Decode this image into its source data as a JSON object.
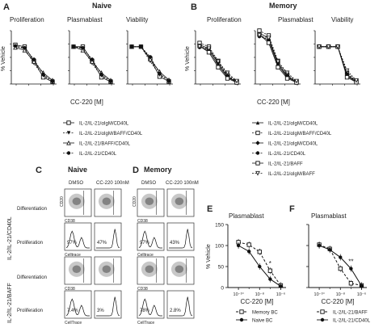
{
  "panels": {
    "A": {
      "letter": "A",
      "group_title": "Naive",
      "col_titles": [
        "Proliferation",
        "Plasmablast",
        "Viability"
      ],
      "ylabel": "% Vehicle",
      "xlabel": "CC-220 [M]",
      "legend": [
        "IL-2/IL-21/αIgM/CD40L",
        "IL-2/IL-21/αIgM/BAFF/CD40L",
        "IL-2/IL-21/BAFF/CD40L",
        "IL-2/IL-21/CD40L"
      ]
    },
    "B": {
      "letter": "B",
      "group_title": "Memory",
      "col_titles": [
        "Proliferation",
        "Plasmablast",
        "Viability"
      ],
      "ylabel": "% Vehicle",
      "xlabel": "CC-220 [M]",
      "legend": [
        "IL-2/IL-21/αIgM/CD40L",
        "IL-2/IL-21/αIgM/BAFF/CD40L",
        "IL-2/IL-21/αIgM/CD40L",
        "IL-2/IL-21/CD40L",
        "IL-2/IL-21/BAFF",
        "IL-2/IL-21/αIgM/BAFF"
      ]
    },
    "C": {
      "letter": "C",
      "title": "Naive",
      "col_labels": [
        "DMSO",
        "CC-220 100nM"
      ],
      "row_group_labels": [
        "IL-2/IL-21/CD40L",
        "IL-2/IL-21/BAFF"
      ],
      "row_labels": [
        "Differentiation",
        "Proliferation",
        "Differentiation",
        "Proliferation"
      ],
      "percents": [
        [
          "97%",
          "47%"
        ],
        [
          "7.4%",
          "3%"
        ]
      ],
      "axis_cd20": "CD20",
      "axis_cd38": "CD38",
      "axis_celltrace": "Celltrace",
      "axis_celltrace2": "CellTrace"
    },
    "D": {
      "letter": "D",
      "title": "Memory",
      "col_labels": [
        "DMSO",
        "CC-220 100nM"
      ],
      "percents": [
        [
          "97%",
          "43%"
        ],
        [
          "78%",
          "2.8%"
        ]
      ],
      "axis_cd20": "CD20",
      "axis_cd38": "CD38",
      "axis_celltrace": "Celltrace",
      "axis_celltrace2": "CellTrace"
    },
    "E": {
      "letter": "E",
      "title": "Plasmablast",
      "ylabel": "% Vehicle",
      "xlabel": "CC-220 [M]",
      "yticks": [
        "0",
        "50",
        "100",
        "150"
      ],
      "xticks": [
        "10⁻¹⁰",
        "10⁻⁸",
        "10⁻⁶"
      ],
      "annotation": "*",
      "legend": [
        "Memory BC",
        "Naive BC"
      ]
    },
    "F": {
      "letter": "F",
      "title": "Plasmablast",
      "xlabel": "CC-220 [M]",
      "xticks": [
        "10⁻¹⁰",
        "10⁻⁸",
        "10⁻⁶"
      ],
      "annotation": "**",
      "legend": [
        "IL-2/IL-21/BAFF",
        "IL-2/IL-21/CD40L"
      ]
    }
  },
  "chart_data": [
    {
      "panel": "E",
      "type": "line",
      "title": "Plasmablast",
      "xlabel": "CC-220 [M]",
      "ylabel": "% Vehicle",
      "xscale": "log",
      "xlim": [
        -11,
        -5.5
      ],
      "ylim": [
        0,
        150
      ],
      "x": [
        "1e-10",
        "1e-9",
        "1e-8",
        "1e-7",
        "1e-6"
      ],
      "series": [
        {
          "name": "Memory BC",
          "marker": "open-square",
          "style": "dashed",
          "values": [
            108,
            102,
            85,
            40,
            5
          ]
        },
        {
          "name": "Naive BC",
          "marker": "filled-circle",
          "style": "solid",
          "values": [
            100,
            86,
            50,
            20,
            3
          ]
        }
      ],
      "legend_position": "bottom"
    },
    {
      "panel": "F",
      "type": "line",
      "title": "Plasmablast",
      "xlabel": "CC-220 [M]",
      "xscale": "log",
      "xlim": [
        -11,
        -5.5
      ],
      "ylim": [
        0,
        150
      ],
      "x": [
        "1e-10",
        "1e-9",
        "1e-8",
        "1e-7",
        "1e-6"
      ],
      "series": [
        {
          "name": "IL-2/IL-21/BAFF",
          "marker": "open-square",
          "style": "dashed",
          "values": [
            102,
            92,
            45,
            10,
            5
          ]
        },
        {
          "name": "IL-2/IL-21/CD40L",
          "marker": "filled-circle",
          "style": "solid",
          "values": [
            100,
            90,
            72,
            45,
            4
          ]
        }
      ],
      "legend_position": "bottom"
    }
  ]
}
